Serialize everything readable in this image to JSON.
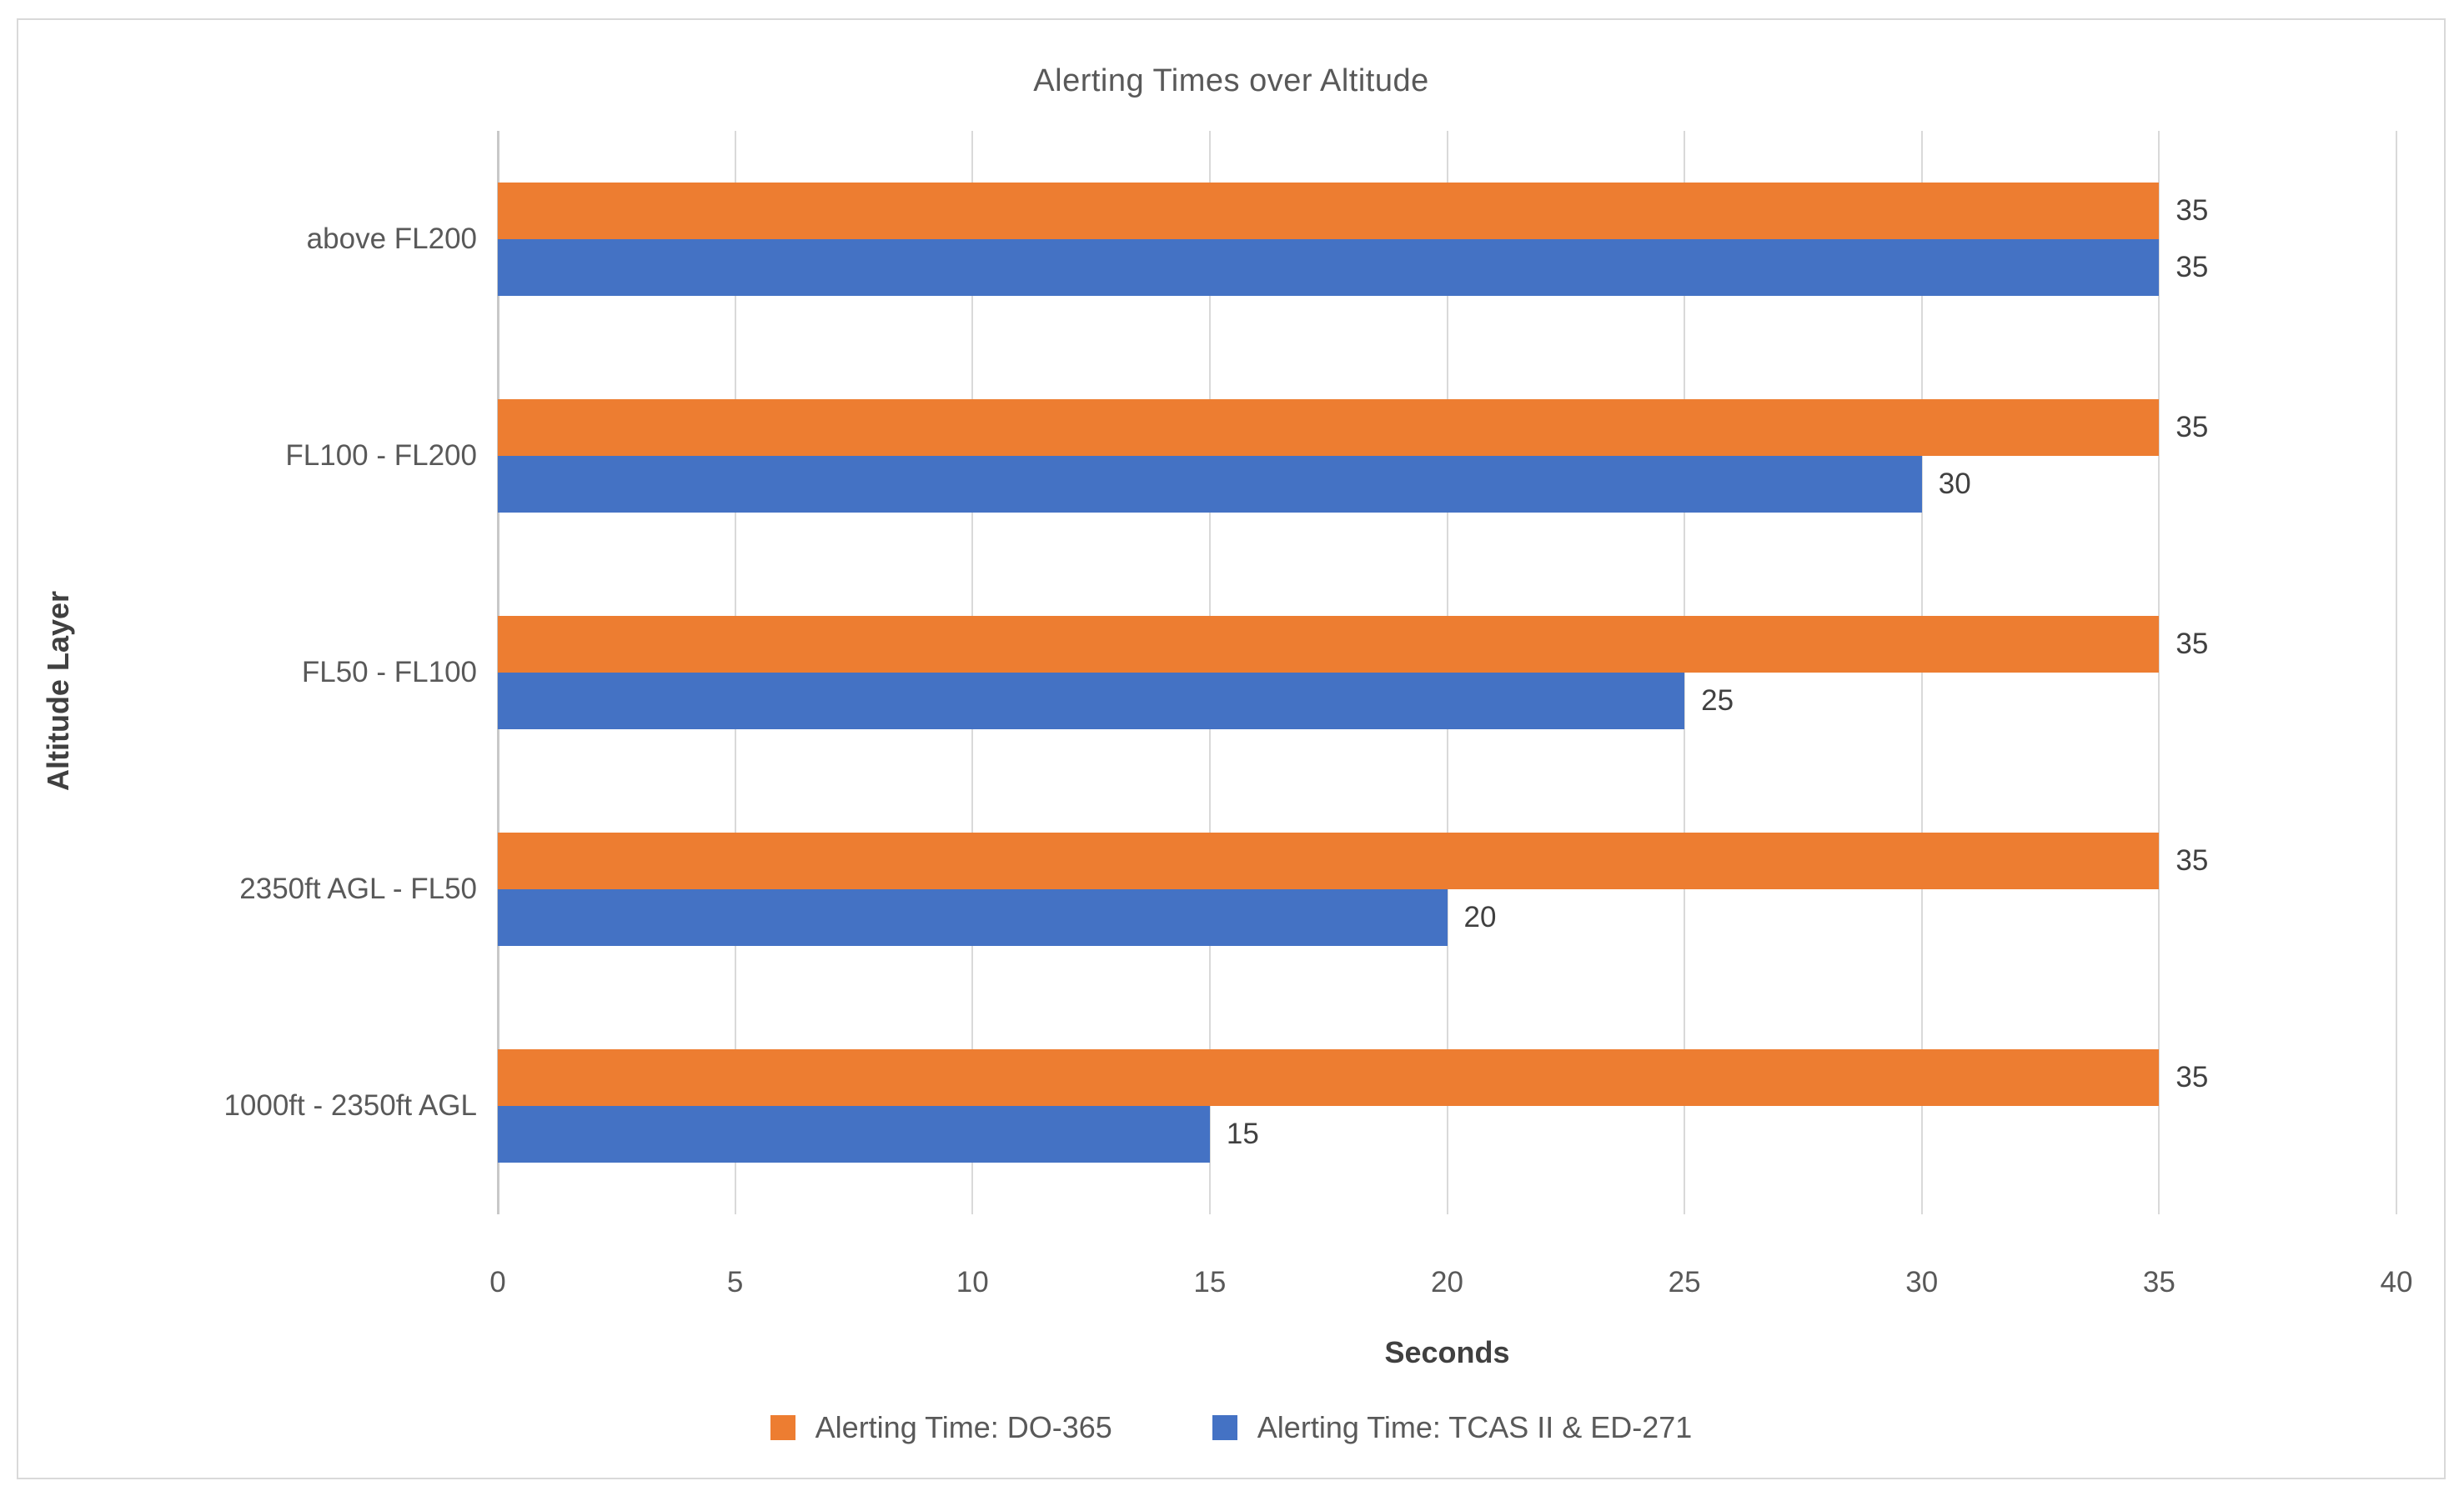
{
  "chart_data": {
    "type": "bar",
    "orientation": "horizontal",
    "title": "Alerting Times over Altitude",
    "xlabel": "Seconds",
    "ylabel": "Altitude Layer",
    "categories": [
      "above FL200",
      "FL100 - FL200",
      "FL50 - FL100",
      "2350ft AGL - FL50",
      "1000ft - 2350ft AGL"
    ],
    "series": [
      {
        "name": "Alerting Time: DO-365",
        "color": "#ED7D31",
        "values": [
          35,
          35,
          35,
          35,
          35
        ]
      },
      {
        "name": "Alerting Time: TCAS II & ED-271",
        "color": "#4472C4",
        "values": [
          35,
          30,
          25,
          20,
          15
        ]
      }
    ],
    "xlim": [
      0,
      40
    ],
    "x_ticks": [
      0,
      5,
      10,
      15,
      20,
      25,
      30,
      35,
      40
    ],
    "grid": "vertical",
    "gridline_color": "#D9D9D9",
    "axis_line_color": "#C8C8C8",
    "legend_position": "bottom",
    "data_labels": true,
    "data_label_color": "#404040",
    "tick_label_color": "#595959"
  }
}
